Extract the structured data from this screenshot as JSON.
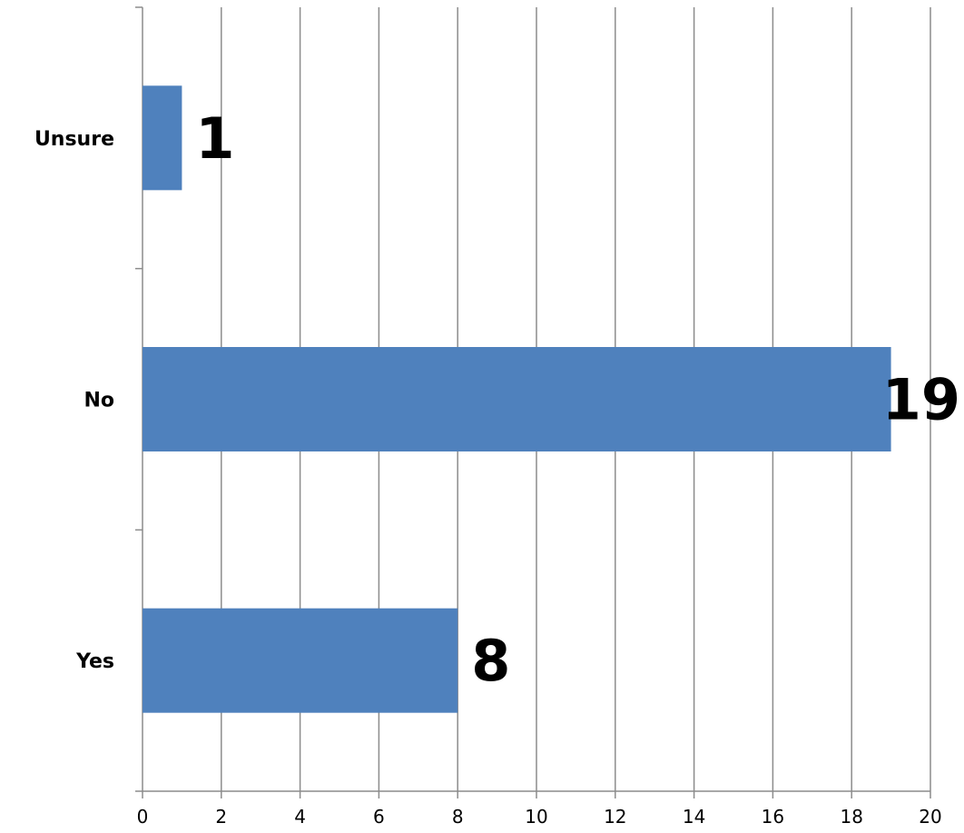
{
  "chart_data": {
    "type": "bar",
    "orientation": "horizontal",
    "categories": [
      "Unsure",
      "No",
      "Yes"
    ],
    "values": [
      1,
      19,
      8
    ],
    "data_labels": [
      "1",
      "19",
      "8"
    ],
    "xlim": [
      0,
      20
    ],
    "x_ticks": [
      "0",
      "2",
      "4",
      "6",
      "8",
      "10",
      "12",
      "14",
      "16",
      "18",
      "20"
    ],
    "grid": "vertical",
    "legend": "none",
    "bar_color": "#4F81BD"
  }
}
